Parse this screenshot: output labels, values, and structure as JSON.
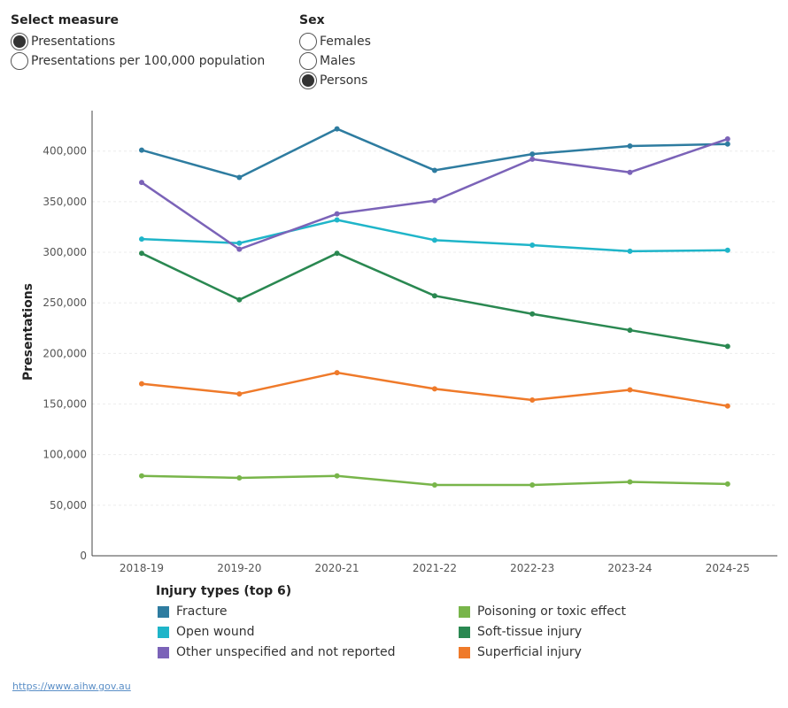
{
  "measure": {
    "title": "Select measure",
    "options": [
      "Presentations",
      "Presentations per 100,000 population"
    ],
    "selected": 0
  },
  "sex": {
    "title": "Sex",
    "options": [
      "Females",
      "Males",
      "Persons"
    ],
    "selected": 2
  },
  "chart_data": {
    "type": "line",
    "ylabel": "Presentations",
    "xlabel": "",
    "x": [
      "2018-19",
      "2019-20",
      "2020-21",
      "2021-22",
      "2022-23",
      "2023-24",
      "2024-25"
    ],
    "ylim": [
      0,
      440000
    ],
    "yticks": [
      0,
      50000,
      100000,
      150000,
      200000,
      250000,
      300000,
      350000,
      400000
    ],
    "ytick_labels": [
      "0",
      "50,000",
      "100,000",
      "150,000",
      "200,000",
      "250,000",
      "300,000",
      "350,000",
      "400,000"
    ],
    "grid": true,
    "legend_title": "Injury types (top 6)",
    "legend_position": "bottom",
    "series": [
      {
        "name": "Fracture",
        "color": "#2e7ca0",
        "values": [
          401000,
          374000,
          422000,
          381000,
          397000,
          405000,
          407000
        ]
      },
      {
        "name": "Open wound",
        "color": "#1fb5c9",
        "values": [
          313000,
          309000,
          332000,
          312000,
          307000,
          301000,
          302000
        ]
      },
      {
        "name": "Other unspecified and not reported",
        "color": "#7b63b8",
        "values": [
          369000,
          303000,
          338000,
          351000,
          392000,
          379000,
          412000
        ]
      },
      {
        "name": "Poisoning or toxic effect",
        "color": "#78b54a",
        "values": [
          79000,
          77000,
          79000,
          70000,
          70000,
          73000,
          71000
        ]
      },
      {
        "name": "Soft-tissue injury",
        "color": "#2a8851",
        "values": [
          299000,
          253000,
          299000,
          257000,
          239000,
          223000,
          207000
        ]
      },
      {
        "name": "Superficial injury",
        "color": "#ef7a2a",
        "values": [
          170000,
          160000,
          181000,
          165000,
          154000,
          164000,
          148000
        ]
      }
    ]
  },
  "legend": {
    "title": "Injury types (top 6)",
    "left_column": [
      {
        "label": "Fracture",
        "color": "#2e7ca0"
      },
      {
        "label": "Open wound",
        "color": "#1fb5c9"
      },
      {
        "label": "Other unspecified and not reported",
        "color": "#7b63b8"
      }
    ],
    "right_column": [
      {
        "label": "Poisoning or toxic effect",
        "color": "#78b54a"
      },
      {
        "label": "Soft-tissue injury",
        "color": "#2a8851"
      },
      {
        "label": "Superficial injury",
        "color": "#ef7a2a"
      }
    ]
  },
  "source": {
    "url_text": "https://www.aihw.gov.au"
  }
}
